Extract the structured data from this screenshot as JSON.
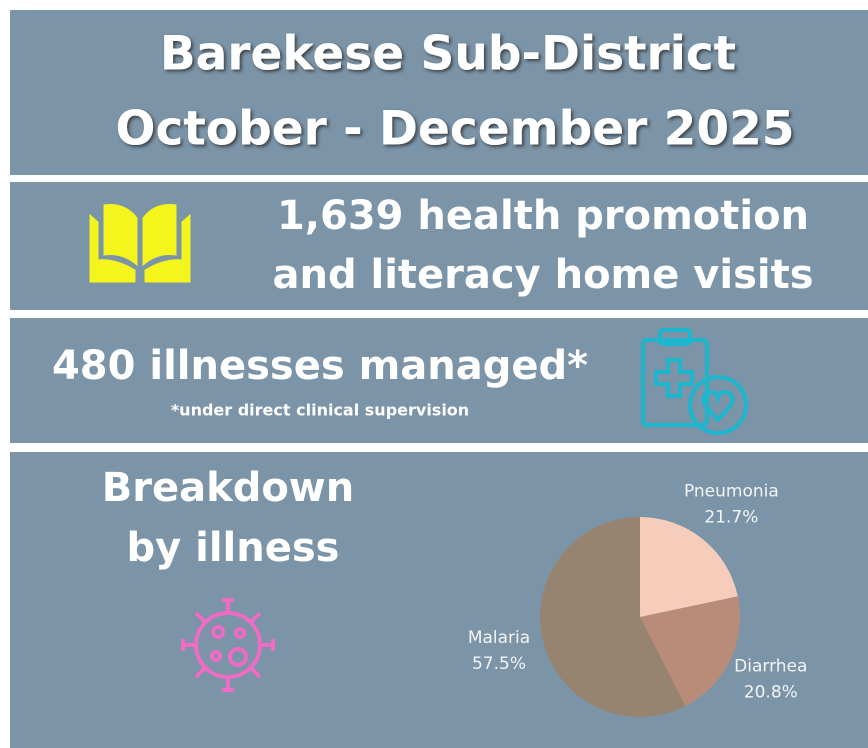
{
  "header": {
    "title_lines": [
      "Barekese Sub-District",
      "October - December 2025"
    ]
  },
  "visits": {
    "lines": [
      "1,639 health promotion",
      "and literacy home visits"
    ]
  },
  "illnesses": {
    "headline": "480 illnesses managed*",
    "note": "*under direct clinical supervision"
  },
  "breakdown": {
    "heading_lines": [
      "Breakdown",
      "by illness"
    ]
  },
  "chart_data": {
    "type": "pie",
    "categories": [
      "Pneumonia",
      "Diarrhea",
      "Malaria"
    ],
    "values": [
      21.7,
      20.8,
      57.5
    ],
    "value_labels": [
      "21.7%",
      "20.8%",
      "57.5%"
    ],
    "colors": [
      "#f6cdbb",
      "#b98b79",
      "#968470"
    ]
  }
}
